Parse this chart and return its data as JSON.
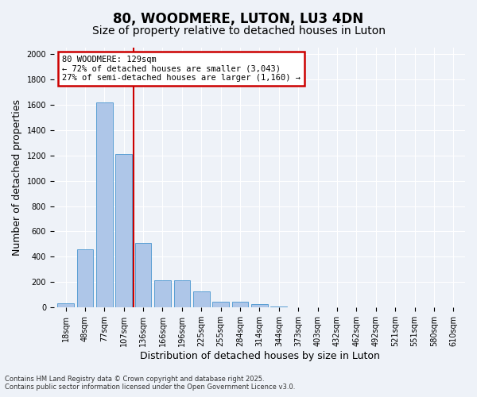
{
  "title": "80, WOODMERE, LUTON, LU3 4DN",
  "subtitle": "Size of property relative to detached houses in Luton",
  "xlabel": "Distribution of detached houses by size in Luton",
  "ylabel": "Number of detached properties",
  "categories": [
    "18sqm",
    "48sqm",
    "77sqm",
    "107sqm",
    "136sqm",
    "166sqm",
    "196sqm",
    "225sqm",
    "255sqm",
    "284sqm",
    "314sqm",
    "344sqm",
    "373sqm",
    "403sqm",
    "432sqm",
    "462sqm",
    "492sqm",
    "521sqm",
    "551sqm",
    "580sqm",
    "610sqm"
  ],
  "values": [
    30,
    460,
    1620,
    1210,
    510,
    215,
    215,
    125,
    45,
    45,
    25,
    10,
    0,
    0,
    0,
    0,
    0,
    0,
    0,
    0,
    0
  ],
  "bar_color": "#aec6e8",
  "bar_edgecolor": "#5a9fd4",
  "vline_x": 3.5,
  "vline_color": "#cc0000",
  "annotation_title": "80 WOODMERE: 129sqm",
  "annotation_line1": "← 72% of detached houses are smaller (3,043)",
  "annotation_line2": "27% of semi-detached houses are larger (1,160) →",
  "annotation_box_color": "#cc0000",
  "ylim": [
    0,
    2050
  ],
  "yticks": [
    0,
    200,
    400,
    600,
    800,
    1000,
    1200,
    1400,
    1600,
    1800,
    2000
  ],
  "footer_line1": "Contains HM Land Registry data © Crown copyright and database right 2025.",
  "footer_line2": "Contains public sector information licensed under the Open Government Licence v3.0.",
  "background_color": "#eef2f8",
  "plot_background": "#eef2f8",
  "grid_color": "#ffffff",
  "title_fontsize": 12,
  "subtitle_fontsize": 10,
  "tick_fontsize": 7,
  "label_fontsize": 9
}
